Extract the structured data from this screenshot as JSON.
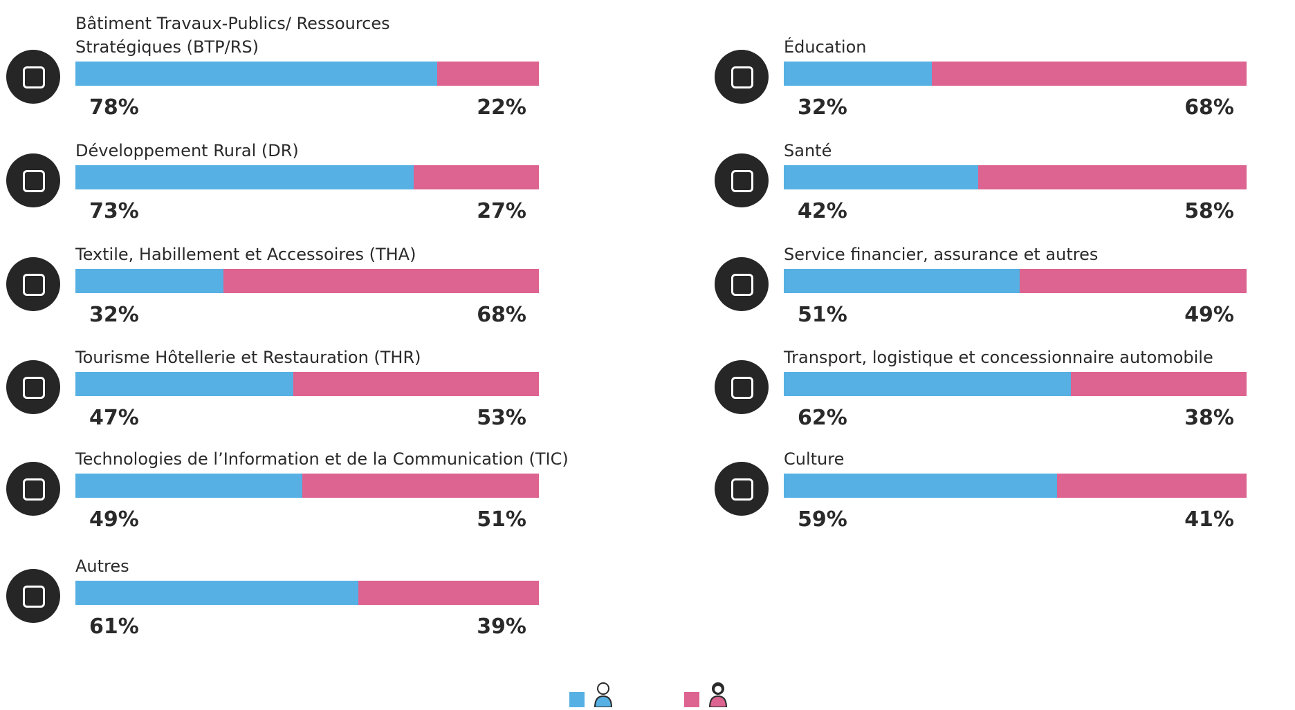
{
  "chart_data": {
    "type": "stacked-bar-100",
    "categories": [
      "Bâtiment Travaux-Publics/ Ressources Stratégiques (BTP/RS)",
      "Développement Rural (DR)",
      "Textile, Habillement et Accessoires (THA)",
      "Tourisme Hôtellerie et Restauration (THR)",
      "Technologies de l’Information et de la Communication (TIC)",
      "Autres",
      "Éducation",
      "Santé",
      "Service financier, assurance et autres",
      "Transport, logistique et concessionnaire automobile",
      "Culture"
    ],
    "series": [
      {
        "color": "#56b0e3",
        "values": [
          78,
          73,
          32,
          47,
          49,
          61,
          32,
          42,
          51,
          62,
          59
        ],
        "value_labels": [
          "78%",
          "73%",
          "32%",
          "47%",
          "49%",
          "61%",
          "32%",
          "42%",
          "51%",
          "62%",
          "59%"
        ]
      },
      {
        "color": "#dd6390",
        "values": [
          22,
          27,
          68,
          53,
          51,
          39,
          68,
          58,
          49,
          38,
          41
        ],
        "value_labels": [
          "22%",
          "27%",
          "68%",
          "53%",
          "51%",
          "39%",
          "68%",
          "58%",
          "49%",
          "38%",
          "41%"
        ]
      }
    ]
  }
}
